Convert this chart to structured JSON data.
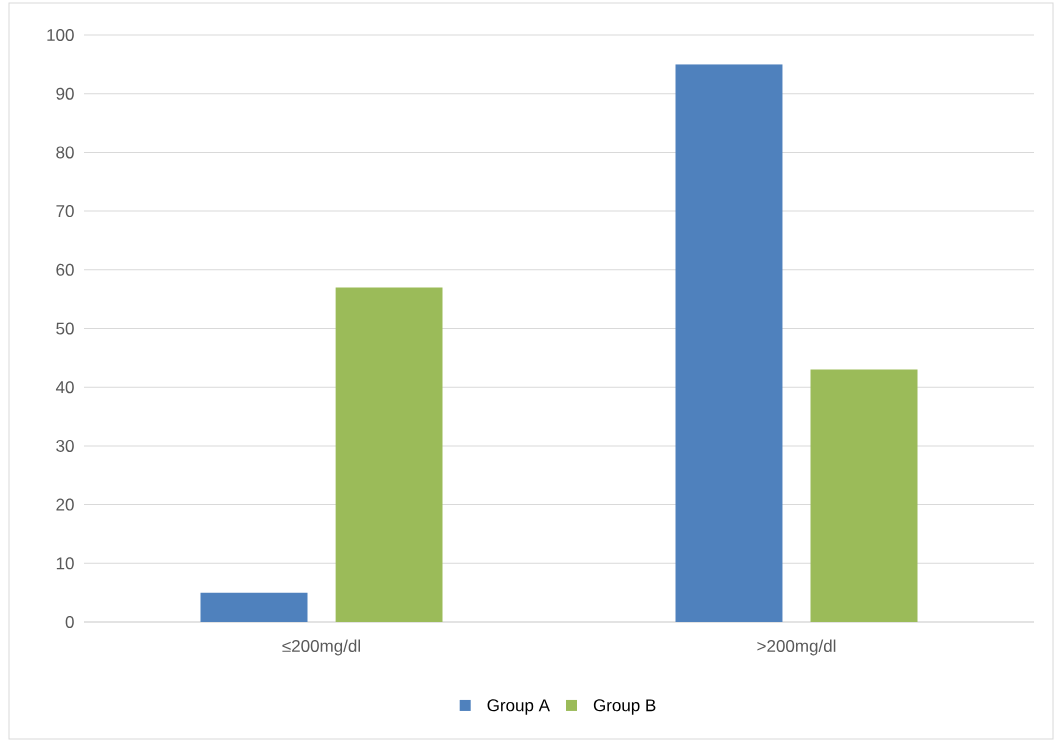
{
  "chart_data": {
    "type": "bar",
    "categories": [
      "≤200mg/dl",
      ">200mg/dl"
    ],
    "series": [
      {
        "name": "Group A",
        "color": "#4f81bd",
        "values": [
          5,
          95
        ]
      },
      {
        "name": "Group B",
        "color": "#9bbb59",
        "values": [
          57,
          43
        ]
      }
    ],
    "ylim": [
      0,
      100
    ],
    "yticks": [
      0,
      10,
      20,
      30,
      40,
      50,
      60,
      70,
      80,
      90,
      100
    ],
    "grid": "y",
    "legend": "bottom"
  }
}
